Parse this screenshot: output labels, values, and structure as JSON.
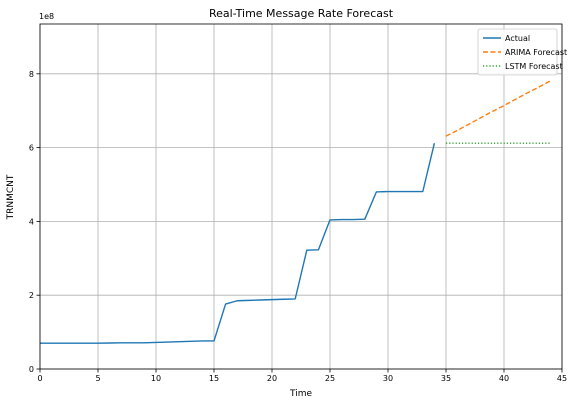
{
  "chart_data": {
    "type": "line",
    "title": "Real-Time Message Rate Forecast",
    "xlabel": "Time",
    "ylabel": "TRNMCNT",
    "y_offset_text": "1e8",
    "xlim": [
      0,
      45
    ],
    "ylim": [
      0,
      9.35
    ],
    "x_ticks": [
      0,
      5,
      10,
      15,
      20,
      25,
      30,
      35,
      40,
      45
    ],
    "y_ticks": [
      0,
      2,
      4,
      6,
      8
    ],
    "grid": true,
    "legend_position": "top-right",
    "series": [
      {
        "name": "Actual",
        "color": "#1f77b4",
        "style": "solid",
        "x": [
          0,
          1,
          2,
          3,
          4,
          5,
          6,
          7,
          8,
          9,
          10,
          11,
          12,
          13,
          14,
          15,
          16,
          17,
          18,
          19,
          20,
          21,
          22,
          23,
          24,
          25,
          26,
          27,
          28,
          29,
          30,
          31,
          32,
          33,
          34
        ],
        "y": [
          0.7,
          0.7,
          0.7,
          0.7,
          0.7,
          0.7,
          0.705,
          0.71,
          0.71,
          0.71,
          0.72,
          0.73,
          0.74,
          0.75,
          0.76,
          0.76,
          1.76,
          1.85,
          1.86,
          1.87,
          1.88,
          1.89,
          1.9,
          3.22,
          3.23,
          4.04,
          4.05,
          4.05,
          4.06,
          4.8,
          4.81,
          4.81,
          4.81,
          4.81,
          6.12
        ]
      },
      {
        "name": "ARIMA Forecast",
        "color": "#ff7f0e",
        "style": "dashed",
        "x": [
          35,
          36,
          37,
          38,
          39,
          40,
          41,
          42,
          43,
          44
        ],
        "y": [
          6.31,
          6.47,
          6.64,
          6.81,
          6.98,
          7.14,
          7.31,
          7.48,
          7.64,
          7.81
        ]
      },
      {
        "name": "LSTM Forecast",
        "color": "#2ca02c",
        "style": "dotted",
        "x": [
          35,
          36,
          37,
          38,
          39,
          40,
          41,
          42,
          43,
          44
        ],
        "y": [
          6.12,
          6.12,
          6.12,
          6.12,
          6.12,
          6.12,
          6.12,
          6.12,
          6.12,
          6.12
        ]
      }
    ]
  }
}
